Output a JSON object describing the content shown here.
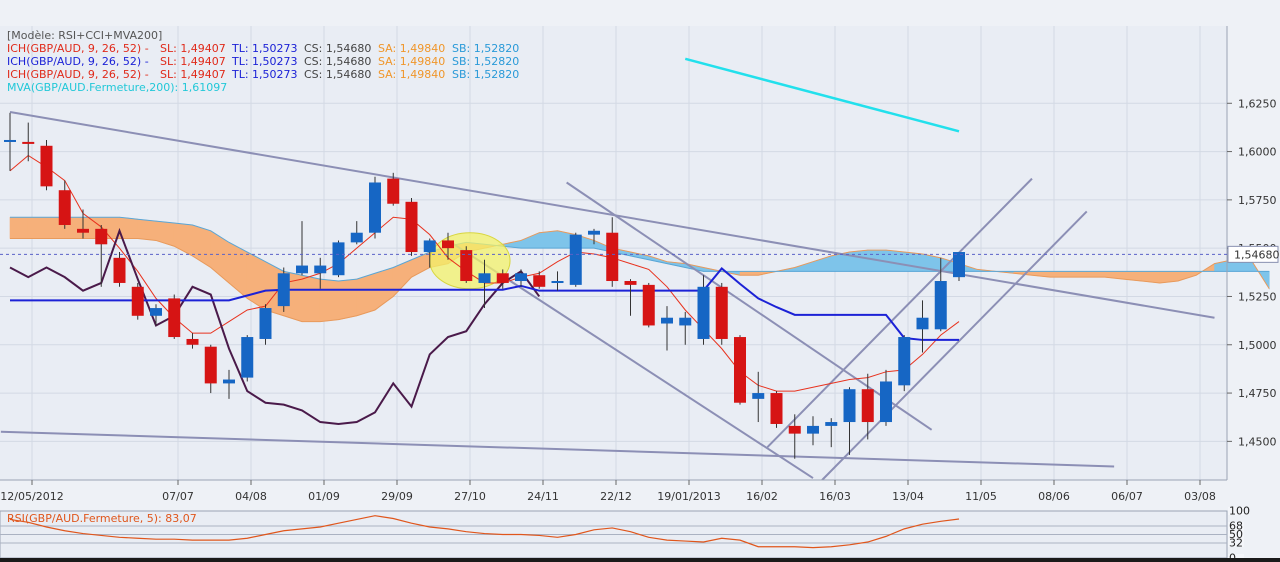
{
  "chart_data": [
    {
      "type": "candlestick",
      "instrument": "GBP/AUD",
      "template_label": "[Modèle: RSI+CCI+MVA200]",
      "legend": [
        {
          "label": "ICH(GBP/AUD, 9, 26, 52) -",
          "sl": "SL: 1,49407",
          "tl": "TL: 1,50273",
          "cs": "CS: 1,54680",
          "sa": "SA: 1,49840",
          "sb": "SB: 1,52820"
        },
        {
          "label": "ICH(GBP/AUD, 9, 26, 52) -",
          "sl": "SL: 1,49407",
          "tl": "TL: 1,50273",
          "cs": "CS: 1,54680",
          "sa": "SA: 1,49840",
          "sb": "SB: 1,52820"
        },
        {
          "label": "ICH(GBP/AUD, 9, 26, 52) -",
          "sl": "SL: 1,49407",
          "tl": "TL: 1,50273",
          "cs": "CS: 1,54680",
          "sa": "SA: 1,49840",
          "sb": "SB: 1,52820"
        },
        {
          "label": "MVA(GBP/AUD.Fermeture,200): 1,61097"
        }
      ],
      "last_price_label": "1,54680",
      "last_price": 1.5468,
      "ylim": [
        1.43,
        1.665
      ],
      "y_ticks": [
        1.45,
        1.475,
        1.5,
        1.525,
        1.55,
        1.575,
        1.6,
        1.625
      ],
      "y_tick_labels": [
        "1,4500",
        "1,4750",
        "1,5000",
        "1,5250",
        "1,5500",
        "1,5750",
        "1,6000",
        "1,6250"
      ],
      "x_tick_labels": [
        "12/05/2012",
        "07/07",
        "04/08",
        "01/09",
        "29/09",
        "27/10",
        "24/11",
        "22/12",
        "19/01/2013",
        "16/02",
        "16/03",
        "13/04",
        "11/05",
        "08/06",
        "06/07",
        "03/08"
      ],
      "candles": [
        {
          "o": 1.605,
          "h": 1.62,
          "l": 1.59,
          "c": 1.606
        },
        {
          "o": 1.605,
          "h": 1.615,
          "l": 1.595,
          "c": 1.604
        },
        {
          "o": 1.603,
          "h": 1.606,
          "l": 1.58,
          "c": 1.582
        },
        {
          "o": 1.58,
          "h": 1.585,
          "l": 1.56,
          "c": 1.562
        },
        {
          "o": 1.56,
          "h": 1.57,
          "l": 1.555,
          "c": 1.558
        },
        {
          "o": 1.56,
          "h": 1.562,
          "l": 1.53,
          "c": 1.552
        },
        {
          "o": 1.545,
          "h": 1.548,
          "l": 1.53,
          "c": 1.532
        },
        {
          "o": 1.53,
          "h": 1.532,
          "l": 1.513,
          "c": 1.515
        },
        {
          "o": 1.515,
          "h": 1.521,
          "l": 1.51,
          "c": 1.519
        },
        {
          "o": 1.524,
          "h": 1.526,
          "l": 1.503,
          "c": 1.504
        },
        {
          "o": 1.503,
          "h": 1.506,
          "l": 1.498,
          "c": 1.5
        },
        {
          "o": 1.499,
          "h": 1.5,
          "l": 1.475,
          "c": 1.48
        },
        {
          "o": 1.48,
          "h": 1.487,
          "l": 1.472,
          "c": 1.482
        },
        {
          "o": 1.483,
          "h": 1.505,
          "l": 1.481,
          "c": 1.504
        },
        {
          "o": 1.503,
          "h": 1.521,
          "l": 1.5,
          "c": 1.519
        },
        {
          "o": 1.52,
          "h": 1.54,
          "l": 1.517,
          "c": 1.537
        },
        {
          "o": 1.537,
          "h": 1.564,
          "l": 1.536,
          "c": 1.541
        },
        {
          "o": 1.537,
          "h": 1.545,
          "l": 1.529,
          "c": 1.541
        },
        {
          "o": 1.536,
          "h": 1.554,
          "l": 1.535,
          "c": 1.553
        },
        {
          "o": 1.553,
          "h": 1.564,
          "l": 1.552,
          "c": 1.558
        },
        {
          "o": 1.558,
          "h": 1.587,
          "l": 1.555,
          "c": 1.584
        },
        {
          "o": 1.586,
          "h": 1.589,
          "l": 1.572,
          "c": 1.573
        },
        {
          "o": 1.574,
          "h": 1.576,
          "l": 1.546,
          "c": 1.548
        },
        {
          "o": 1.548,
          "h": 1.555,
          "l": 1.54,
          "c": 1.554
        },
        {
          "o": 1.554,
          "h": 1.558,
          "l": 1.544,
          "c": 1.55
        },
        {
          "o": 1.549,
          "h": 1.551,
          "l": 1.532,
          "c": 1.533
        },
        {
          "o": 1.532,
          "h": 1.544,
          "l": 1.519,
          "c": 1.537
        },
        {
          "o": 1.537,
          "h": 1.539,
          "l": 1.529,
          "c": 1.532
        },
        {
          "o": 1.533,
          "h": 1.539,
          "l": 1.53,
          "c": 1.537
        },
        {
          "o": 1.536,
          "h": 1.538,
          "l": 1.529,
          "c": 1.53
        },
        {
          "o": 1.532,
          "h": 1.538,
          "l": 1.528,
          "c": 1.533
        },
        {
          "o": 1.531,
          "h": 1.558,
          "l": 1.53,
          "c": 1.557
        },
        {
          "o": 1.557,
          "h": 1.56,
          "l": 1.552,
          "c": 1.559
        },
        {
          "o": 1.558,
          "h": 1.566,
          "l": 1.53,
          "c": 1.533
        },
        {
          "o": 1.533,
          "h": 1.534,
          "l": 1.515,
          "c": 1.531
        },
        {
          "o": 1.531,
          "h": 1.532,
          "l": 1.509,
          "c": 1.51
        },
        {
          "o": 1.511,
          "h": 1.52,
          "l": 1.497,
          "c": 1.514
        },
        {
          "o": 1.51,
          "h": 1.517,
          "l": 1.5,
          "c": 1.514
        },
        {
          "o": 1.503,
          "h": 1.536,
          "l": 1.5,
          "c": 1.53
        },
        {
          "o": 1.53,
          "h": 1.532,
          "l": 1.5,
          "c": 1.503
        },
        {
          "o": 1.504,
          "h": 1.505,
          "l": 1.469,
          "c": 1.47
        },
        {
          "o": 1.472,
          "h": 1.486,
          "l": 1.46,
          "c": 1.475
        },
        {
          "o": 1.475,
          "h": 1.476,
          "l": 1.457,
          "c": 1.459
        },
        {
          "o": 1.458,
          "h": 1.464,
          "l": 1.441,
          "c": 1.454
        },
        {
          "o": 1.454,
          "h": 1.463,
          "l": 1.448,
          "c": 1.458
        },
        {
          "o": 1.458,
          "h": 1.462,
          "l": 1.447,
          "c": 1.46
        },
        {
          "o": 1.46,
          "h": 1.478,
          "l": 1.443,
          "c": 1.477
        },
        {
          "o": 1.477,
          "h": 1.485,
          "l": 1.451,
          "c": 1.46
        },
        {
          "o": 1.46,
          "h": 1.487,
          "l": 1.458,
          "c": 1.481
        },
        {
          "o": 1.479,
          "h": 1.505,
          "l": 1.476,
          "c": 1.504
        },
        {
          "o": 1.508,
          "h": 1.523,
          "l": 1.496,
          "c": 1.514
        },
        {
          "o": 1.508,
          "h": 1.545,
          "l": 1.507,
          "c": 1.533
        },
        {
          "o": 1.535,
          "h": 1.548,
          "l": 1.533,
          "c": 1.548
        }
      ],
      "mva200": [
        [
          37,
          1.648
        ],
        [
          52,
          1.6105
        ]
      ],
      "tenkan_sen": [
        1.523,
        1.523,
        1.523,
        1.523,
        1.523,
        1.523,
        1.523,
        1.523,
        1.523,
        1.523,
        1.523,
        1.523,
        1.523,
        1.5255,
        1.528,
        1.5285,
        1.5285,
        1.5285,
        1.5285,
        1.5285,
        1.5285,
        1.5285,
        1.5285,
        1.5285,
        1.5285,
        1.5285,
        1.5285,
        1.5285,
        1.5305,
        1.528,
        1.528,
        1.528,
        1.528,
        1.528,
        1.528,
        1.528,
        1.528,
        1.528,
        1.528,
        1.5395,
        1.5315,
        1.524,
        1.5195,
        1.5155,
        1.5155,
        1.5155,
        1.5155,
        1.5155,
        1.5155,
        1.5035,
        1.5025,
        1.5025,
        1.5025
      ],
      "kijun_sen": [
        1.59,
        1.598,
        1.592,
        1.585,
        1.568,
        1.561,
        1.55,
        1.538,
        1.524,
        1.514,
        1.506,
        1.506,
        1.512,
        1.518,
        1.52,
        1.532,
        1.534,
        1.537,
        1.542,
        1.55,
        1.558,
        1.566,
        1.565,
        1.557,
        1.545,
        1.538,
        1.532,
        1.532,
        1.535,
        1.537,
        1.543,
        1.548,
        1.547,
        1.545,
        1.542,
        1.539,
        1.53,
        1.518,
        1.508,
        1.498,
        1.486,
        1.479,
        1.476,
        1.476,
        1.478,
        1.48,
        1.482,
        1.483,
        1.486,
        1.487,
        1.495,
        1.505,
        1.512
      ],
      "chikou_span": [
        1.54,
        1.535,
        1.54,
        1.535,
        1.528,
        1.532,
        1.559,
        1.534,
        1.51,
        1.515,
        1.53,
        1.526,
        1.498,
        1.476,
        1.47,
        1.469,
        1.466,
        1.46,
        1.459,
        1.46,
        1.465,
        1.48,
        1.468,
        1.495,
        1.504,
        1.507,
        1.521,
        1.532,
        1.538,
        1.525
      ],
      "kumo_span_a": [
        1.555,
        1.555,
        1.555,
        1.555,
        1.555,
        1.555,
        1.555,
        1.555,
        1.554,
        1.551,
        1.546,
        1.54,
        1.532,
        1.524,
        1.518,
        1.515,
        1.512,
        1.512,
        1.513,
        1.515,
        1.518,
        1.525,
        1.535,
        1.54,
        1.542,
        1.548,
        1.55,
        1.552,
        1.554,
        1.558,
        1.559,
        1.557,
        1.554,
        1.55,
        1.548,
        1.546,
        1.543,
        1.542,
        1.54,
        1.538,
        1.536,
        1.536,
        1.538,
        1.54,
        1.543,
        1.546,
        1.548,
        1.549,
        1.549,
        1.548,
        1.547,
        1.545,
        1.542,
        1.539,
        1.538,
        1.537,
        1.536,
        1.535,
        1.535,
        1.535,
        1.535,
        1.534,
        1.533,
        1.532,
        1.533,
        1.536,
        1.542,
        1.544,
        1.544,
        1.529
      ],
      "kumo_span_b": [
        1.566,
        1.566,
        1.566,
        1.566,
        1.566,
        1.566,
        1.566,
        1.565,
        1.564,
        1.563,
        1.562,
        1.559,
        1.553,
        1.548,
        1.543,
        1.538,
        1.536,
        1.534,
        1.533,
        1.534,
        1.537,
        1.54,
        1.544,
        1.548,
        1.551,
        1.553,
        1.552,
        1.551,
        1.55,
        1.55,
        1.55,
        1.55,
        1.55,
        1.548,
        1.546,
        1.544,
        1.542,
        1.54,
        1.538,
        1.538,
        1.538,
        1.538,
        1.538,
        1.538,
        1.538,
        1.538,
        1.538,
        1.538,
        1.538,
        1.538,
        1.538,
        1.538,
        1.538,
        1.538,
        1.538,
        1.538,
        1.538,
        1.538,
        1.538,
        1.538,
        1.538,
        1.538,
        1.538,
        1.538,
        1.538,
        1.538,
        1.538,
        1.538,
        1.538,
        1.538
      ],
      "trend_lines": [
        {
          "from": [
            0,
            1.6205
          ],
          "to": [
            66,
            1.514
          ]
        },
        {
          "from": [
            -0.5,
            1.455
          ],
          "to": [
            60.5,
            1.437
          ]
        },
        {
          "from": [
            30.5,
            1.584
          ],
          "to": [
            50.5,
            1.456
          ]
        },
        {
          "from": [
            24,
            1.554
          ],
          "to": [
            44,
            1.431
          ]
        },
        {
          "from": [
            41.5,
            1.447
          ],
          "to": [
            56,
            1.586
          ]
        },
        {
          "from": [
            44.5,
            1.43
          ],
          "to": [
            59,
            1.569
          ]
        }
      ],
      "highlight_ellipse": {
        "cx": 25.2,
        "cy": 1.5435,
        "rx": 2.2,
        "ry": 0.0145
      }
    },
    {
      "type": "line",
      "title": "RSI(GBP/AUD.Fermeture, 5): 83,07",
      "ylim": [
        0,
        100
      ],
      "scale_labels": [
        "100",
        "68",
        "50",
        "32",
        "0"
      ],
      "rsi": [
        82,
        76,
        66,
        58,
        52,
        48,
        44,
        42,
        40,
        40,
        38,
        38,
        38,
        42,
        50,
        58,
        62,
        66,
        74,
        82,
        90,
        84,
        74,
        66,
        62,
        56,
        52,
        50,
        50,
        48,
        44,
        50,
        60,
        64,
        56,
        44,
        38,
        36,
        34,
        42,
        38,
        24,
        24,
        24,
        22,
        24,
        28,
        34,
        46,
        62,
        72,
        78,
        83
      ]
    }
  ]
}
